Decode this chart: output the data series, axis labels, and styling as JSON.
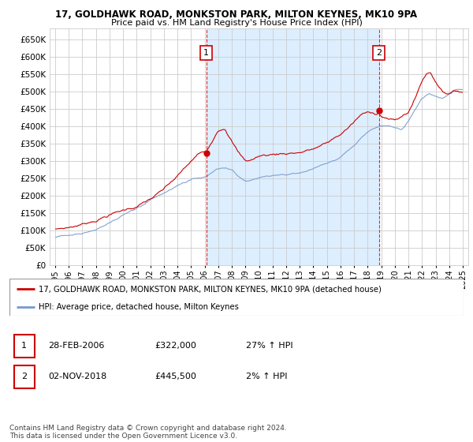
{
  "title1": "17, GOLDHAWK ROAD, MONKSTON PARK, MILTON KEYNES, MK10 9PA",
  "title2": "Price paid vs. HM Land Registry's House Price Index (HPI)",
  "legend_house": "17, GOLDHAWK ROAD, MONKSTON PARK, MILTON KEYNES, MK10 9PA (detached house)",
  "legend_hpi": "HPI: Average price, detached house, Milton Keynes",
  "annotation1_label": "1",
  "annotation1_date": "28-FEB-2006",
  "annotation1_price": "£322,000",
  "annotation1_hpi": "27% ↑ HPI",
  "annotation2_label": "2",
  "annotation2_date": "02-NOV-2018",
  "annotation2_price": "£445,500",
  "annotation2_hpi": "2% ↑ HPI",
  "footer": "Contains HM Land Registry data © Crown copyright and database right 2024.\nThis data is licensed under the Open Government Licence v3.0.",
  "house_color": "#cc0000",
  "hpi_color": "#7799cc",
  "hpi_fill_color": "#ddeeff",
  "vline_color": "#cc0000",
  "ylim_min": 0,
  "ylim_max": 680000,
  "yticks": [
    0,
    50000,
    100000,
    150000,
    200000,
    250000,
    300000,
    350000,
    400000,
    450000,
    500000,
    550000,
    600000,
    650000
  ],
  "bg_color": "#ffffff",
  "grid_color": "#cccccc",
  "sale1_t": 2006.125,
  "sale1_price": 322000,
  "sale2_t": 2018.833,
  "sale2_price": 445500
}
